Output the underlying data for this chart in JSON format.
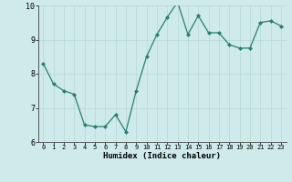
{
  "x": [
    0,
    1,
    2,
    3,
    4,
    5,
    6,
    7,
    8,
    9,
    10,
    11,
    12,
    13,
    14,
    15,
    16,
    17,
    18,
    19,
    20,
    21,
    22,
    23
  ],
  "y": [
    8.3,
    7.7,
    7.5,
    7.4,
    6.5,
    6.45,
    6.45,
    6.8,
    6.3,
    7.5,
    8.5,
    9.15,
    9.65,
    10.1,
    9.15,
    9.7,
    9.2,
    9.2,
    8.85,
    8.75,
    8.75,
    9.5,
    9.55,
    9.4
  ],
  "xlabel": "Humidex (Indice chaleur)",
  "ylim": [
    6,
    10
  ],
  "xlim_min": -0.5,
  "xlim_max": 23.5,
  "yticks": [
    6,
    7,
    8,
    9,
    10
  ],
  "xticks": [
    0,
    1,
    2,
    3,
    4,
    5,
    6,
    7,
    8,
    9,
    10,
    11,
    12,
    13,
    14,
    15,
    16,
    17,
    18,
    19,
    20,
    21,
    22,
    23
  ],
  "xtick_labels": [
    "0",
    "1",
    "2",
    "3",
    "4",
    "5",
    "6",
    "7",
    "8",
    "9",
    "10",
    "11",
    "12",
    "13",
    "14",
    "15",
    "16",
    "17",
    "18",
    "19",
    "20",
    "21",
    "22",
    "23"
  ],
  "line_color": "#2e7d6e",
  "marker": "D",
  "marker_size": 2.0,
  "bg_color": "#ceeaea",
  "grid_color": "#b8d8d8",
  "axis_color": "#555555",
  "xlabel_fontsize": 6.5,
  "xlabel_fontweight": "bold",
  "ytick_fontsize": 6.0,
  "xtick_fontsize": 5.0,
  "line_width": 0.9
}
